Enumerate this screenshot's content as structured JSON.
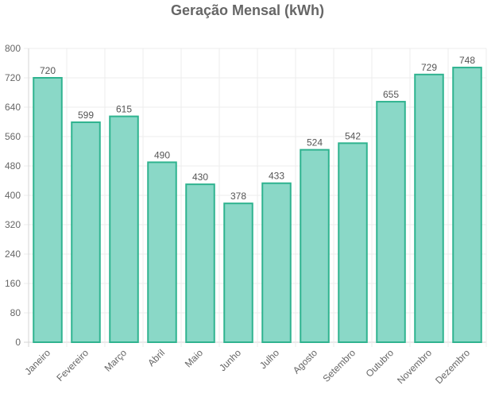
{
  "chart_data": {
    "type": "bar",
    "title": "Geração Mensal (kWh)",
    "xlabel": "",
    "ylabel": "",
    "categories": [
      "Janeiro",
      "Fevereiro",
      "Março",
      "Abril",
      "Maio",
      "Junho",
      "Julho",
      "Agosto",
      "Setembro",
      "Outubro",
      "Novembro",
      "Dezembro"
    ],
    "values": [
      720,
      599,
      615,
      490,
      430,
      378,
      433,
      524,
      542,
      655,
      729,
      748
    ],
    "ylim": [
      0,
      800
    ],
    "yticks": [
      0,
      80,
      160,
      240,
      320,
      400,
      480,
      560,
      640,
      720,
      800
    ],
    "grid": true,
    "legend": "none",
    "colors": {
      "bar_fill": "#8ad8c7",
      "bar_stroke": "#2fb38f"
    }
  }
}
